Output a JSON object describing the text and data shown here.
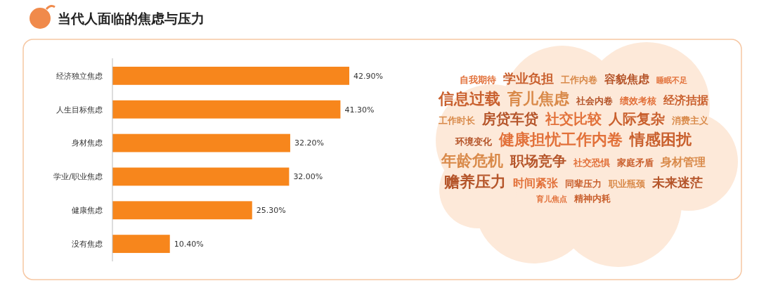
{
  "chart_data": [
    {
      "type": "bar",
      "orientation": "horizontal",
      "title": "当代人面临的焦虑与压力",
      "categories": [
        "经济独立焦虑",
        "人生目标焦虑",
        "身材焦虑",
        "学业/职业焦虑",
        "健康焦虑",
        "没有焦虑"
      ],
      "values": [
        42.9,
        41.3,
        32.2,
        32.0,
        25.3,
        10.4
      ],
      "value_labels": [
        "42.90%",
        "41.30%",
        "32.20%",
        "32.00%",
        "25.30%",
        "10.40%"
      ],
      "color": "#f7861c"
    },
    {
      "type": "other",
      "annotations": [
        "自我期待",
        "学业负担",
        "工作内卷",
        "容貌焦虑",
        "睡眠不足",
        "信息过载",
        "育儿焦虑",
        "社会内卷",
        "绩效考核",
        "经济拮据",
        "工作时长",
        "房贷车贷",
        "社交比较",
        "人际复杂",
        "消费主义",
        "环境变化",
        "健康担忧工作内卷",
        "情感困扰",
        "年龄危机",
        "职场竞争",
        "社交恐惧",
        "家庭矛盾",
        "身材管理",
        "赡养压力",
        "时间紧张",
        "同辈压力",
        "职业瓶颈",
        "未来迷茫",
        "育儿焦点",
        "精神内耗"
      ]
    }
  ]
}
